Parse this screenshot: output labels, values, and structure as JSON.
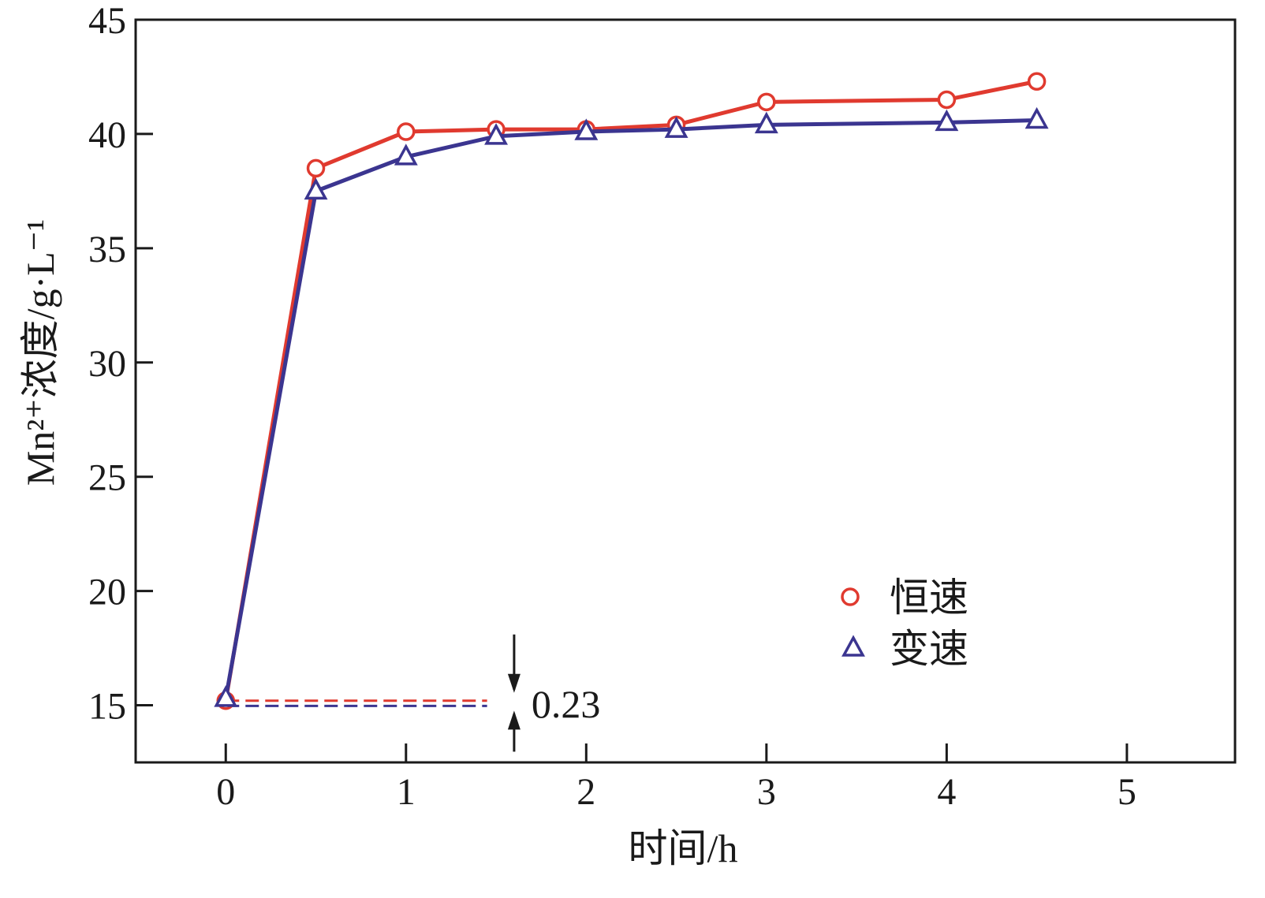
{
  "chart_data": {
    "type": "line",
    "xlabel": "时间/h",
    "ylabel": "Mn²⁺浓度/g·L⁻¹",
    "xlim": [
      -0.5,
      5.6
    ],
    "ylim": [
      12.5,
      45
    ],
    "xticks": [
      "0",
      "1",
      "2",
      "3",
      "4",
      "5"
    ],
    "yticks": [
      "15",
      "20",
      "25",
      "30",
      "35",
      "40",
      "45"
    ],
    "grid": false,
    "legend_position": "lower-right",
    "series": [
      {
        "name": "恒速",
        "marker": "circle",
        "color": "#e03a2f",
        "x": [
          0,
          0.5,
          1,
          1.5,
          2,
          2.5,
          3,
          4,
          4.5
        ],
        "y": [
          15.2,
          38.5,
          40.1,
          40.2,
          40.2,
          40.4,
          41.4,
          41.5,
          42.3
        ]
      },
      {
        "name": "变速",
        "marker": "triangle",
        "color": "#3b3590",
        "x": [
          0,
          0.5,
          1,
          1.5,
          2,
          2.5,
          3,
          4,
          4.5
        ],
        "y": [
          15.3,
          37.5,
          39.0,
          39.9,
          40.1,
          40.2,
          40.4,
          40.5,
          40.6
        ]
      }
    ],
    "annotation": {
      "text": "0.23",
      "upper_value": 15.2,
      "lower_value": 14.97,
      "x_start": 0,
      "x_end": 1.45,
      "arrow_x": 1.6
    }
  }
}
